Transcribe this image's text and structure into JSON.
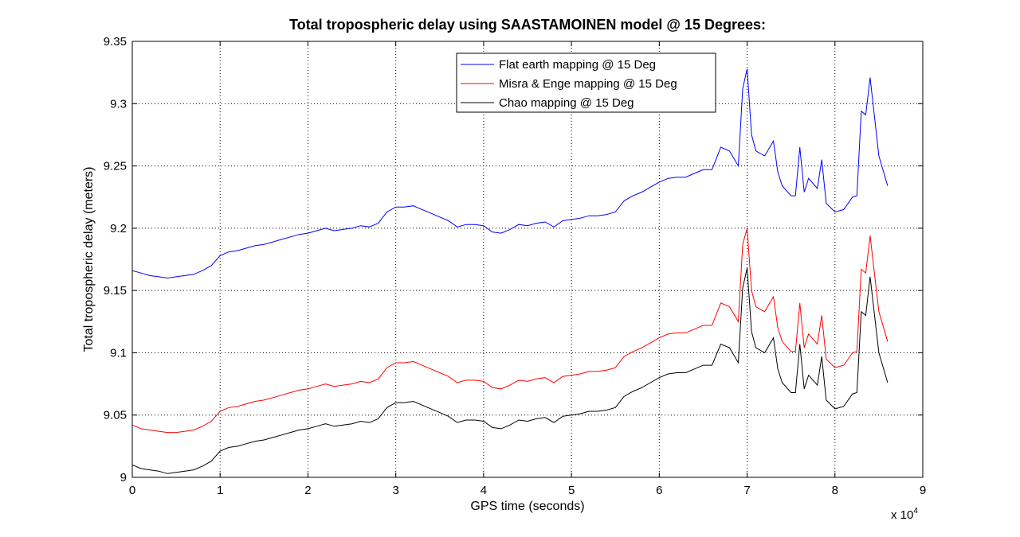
{
  "chart_data": {
    "type": "line",
    "title": "Total tropospheric delay using SAASTAMOINEN model @ 15 Degrees:",
    "xlabel": "GPS time (seconds)",
    "ylabel": "Total tropospheric delay (meters)",
    "x_multiplier_label": "x 10",
    "x_multiplier_exp": "4",
    "xlim": [
      0,
      9
    ],
    "ylim": [
      9,
      9.35
    ],
    "xticks": [
      "0",
      "1",
      "2",
      "3",
      "4",
      "5",
      "6",
      "7",
      "8",
      "9"
    ],
    "yticks": [
      "9",
      "9.05",
      "9.1",
      "9.15",
      "9.2",
      "9.25",
      "9.3",
      "9.35"
    ],
    "grid": true,
    "legend_position": "top-right",
    "colors": {
      "flat": "#0000ff",
      "misra": "#ff0000",
      "chao": "#000000"
    },
    "x": [
      0,
      0.1,
      0.2,
      0.3,
      0.4,
      0.5,
      0.6,
      0.7,
      0.8,
      0.9,
      1.0,
      1.1,
      1.2,
      1.3,
      1.4,
      1.5,
      1.6,
      1.7,
      1.8,
      1.9,
      2.0,
      2.1,
      2.2,
      2.3,
      2.4,
      2.5,
      2.6,
      2.7,
      2.8,
      2.9,
      3.0,
      3.1,
      3.2,
      3.3,
      3.4,
      3.5,
      3.6,
      3.7,
      3.8,
      3.9,
      4.0,
      4.1,
      4.2,
      4.3,
      4.4,
      4.5,
      4.6,
      4.7,
      4.8,
      4.9,
      5.0,
      5.1,
      5.2,
      5.3,
      5.4,
      5.5,
      5.6,
      5.7,
      5.8,
      5.9,
      6.0,
      6.1,
      6.2,
      6.3,
      6.4,
      6.5,
      6.6,
      6.7,
      6.8,
      6.9,
      6.95,
      7.0,
      7.05,
      7.1,
      7.2,
      7.3,
      7.35,
      7.4,
      7.5,
      7.55,
      7.6,
      7.65,
      7.7,
      7.8,
      7.85,
      7.9,
      8.0,
      8.1,
      8.2,
      8.25,
      8.3,
      8.35,
      8.4,
      8.5,
      8.6
    ],
    "series": [
      {
        "name": "Flat earth mapping @ 15 Deg",
        "values": [
          9.166,
          9.164,
          9.162,
          9.161,
          9.16,
          9.161,
          9.162,
          9.163,
          9.166,
          9.17,
          9.178,
          9.181,
          9.182,
          9.184,
          9.186,
          9.187,
          9.189,
          9.191,
          9.193,
          9.195,
          9.196,
          9.198,
          9.2,
          9.198,
          9.199,
          9.2,
          9.202,
          9.201,
          9.204,
          9.213,
          9.217,
          9.217,
          9.218,
          9.215,
          9.212,
          9.209,
          9.206,
          9.201,
          9.203,
          9.203,
          9.202,
          9.197,
          9.196,
          9.199,
          9.203,
          9.202,
          9.204,
          9.205,
          9.201,
          9.206,
          9.207,
          9.208,
          9.21,
          9.21,
          9.211,
          9.213,
          9.222,
          9.226,
          9.229,
          9.233,
          9.237,
          9.24,
          9.241,
          9.241,
          9.244,
          9.247,
          9.247,
          9.265,
          9.262,
          9.25,
          9.312,
          9.328,
          9.275,
          9.262,
          9.258,
          9.27,
          9.245,
          9.234,
          9.226,
          9.226,
          9.265,
          9.229,
          9.24,
          9.232,
          9.255,
          9.22,
          9.213,
          9.215,
          9.225,
          9.226,
          9.294,
          9.291,
          9.321,
          9.258,
          9.234
        ]
      },
      {
        "name": "Misra & Enge mapping @ 15 Deg",
        "values": [
          9.042,
          9.039,
          9.038,
          9.037,
          9.036,
          9.036,
          9.037,
          9.038,
          9.041,
          9.045,
          9.053,
          9.056,
          9.057,
          9.059,
          9.061,
          9.062,
          9.064,
          9.066,
          9.068,
          9.07,
          9.071,
          9.073,
          9.075,
          9.073,
          9.074,
          9.075,
          9.077,
          9.076,
          9.079,
          9.088,
          9.092,
          9.092,
          9.093,
          9.09,
          9.087,
          9.084,
          9.081,
          9.076,
          9.078,
          9.078,
          9.077,
          9.072,
          9.071,
          9.074,
          9.078,
          9.077,
          9.079,
          9.08,
          9.076,
          9.081,
          9.082,
          9.083,
          9.085,
          9.085,
          9.086,
          9.088,
          9.097,
          9.101,
          9.104,
          9.108,
          9.112,
          9.115,
          9.116,
          9.116,
          9.119,
          9.122,
          9.122,
          9.14,
          9.137,
          9.125,
          9.187,
          9.2,
          9.15,
          9.137,
          9.133,
          9.145,
          9.12,
          9.109,
          9.101,
          9.101,
          9.14,
          9.104,
          9.115,
          9.107,
          9.13,
          9.095,
          9.088,
          9.09,
          9.1,
          9.101,
          9.167,
          9.164,
          9.194,
          9.133,
          9.109
        ]
      },
      {
        "name": "Chao mapping @ 15 Deg",
        "values": [
          9.01,
          9.007,
          9.006,
          9.005,
          9.003,
          9.004,
          9.005,
          9.006,
          9.009,
          9.013,
          9.021,
          9.024,
          9.025,
          9.027,
          9.029,
          9.03,
          9.032,
          9.034,
          9.036,
          9.038,
          9.039,
          9.041,
          9.043,
          9.041,
          9.042,
          9.043,
          9.045,
          9.044,
          9.047,
          9.056,
          9.06,
          9.06,
          9.061,
          9.058,
          9.055,
          9.052,
          9.049,
          9.044,
          9.046,
          9.046,
          9.045,
          9.04,
          9.039,
          9.042,
          9.046,
          9.045,
          9.047,
          9.048,
          9.044,
          9.049,
          9.05,
          9.051,
          9.053,
          9.053,
          9.054,
          9.056,
          9.065,
          9.069,
          9.072,
          9.076,
          9.08,
          9.083,
          9.084,
          9.084,
          9.087,
          9.09,
          9.09,
          9.107,
          9.104,
          9.092,
          9.152,
          9.168,
          9.117,
          9.104,
          9.1,
          9.112,
          9.087,
          9.076,
          9.068,
          9.068,
          9.107,
          9.071,
          9.082,
          9.074,
          9.097,
          9.062,
          9.055,
          9.057,
          9.067,
          9.068,
          9.133,
          9.13,
          9.161,
          9.1,
          9.076
        ]
      }
    ]
  }
}
